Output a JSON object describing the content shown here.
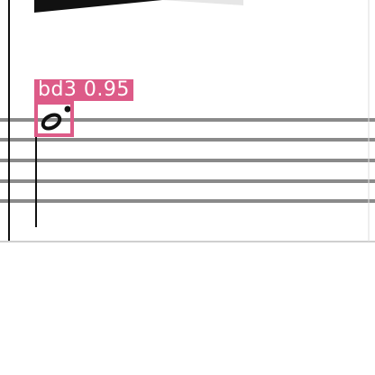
{
  "detection": {
    "label": "bd3 0.95",
    "color": "#dd5b88"
  },
  "score": {
    "staff_lines": 5,
    "line_color": "#7a7a7a"
  }
}
